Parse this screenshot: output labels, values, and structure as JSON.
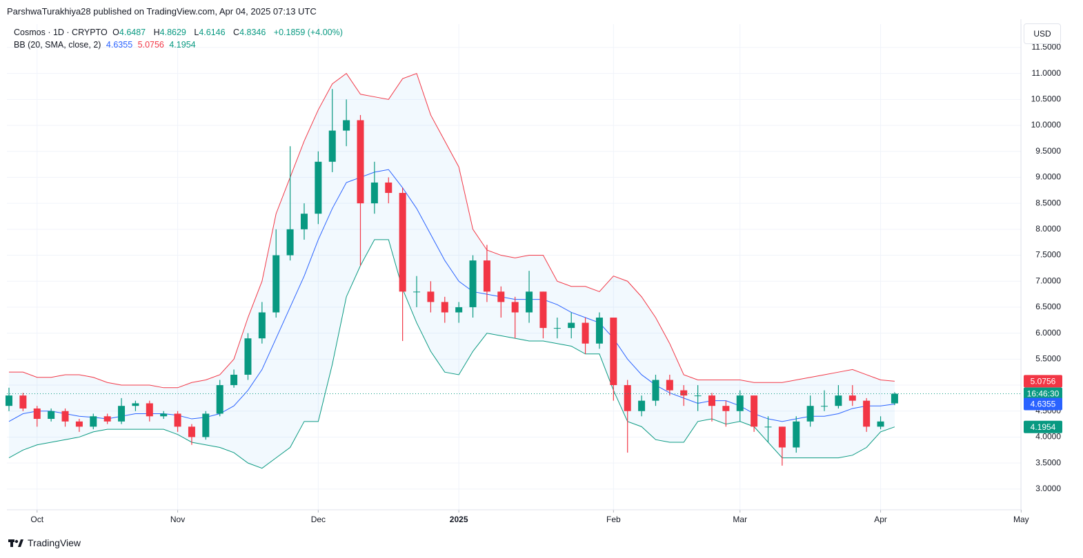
{
  "header": "ParshwaTurakhiya28 published on TradingView.com, Apr 04, 2025 07:13 UTC",
  "legend": {
    "symbol": "Cosmos · 1D · CRYPTO",
    "o": "O",
    "h": "H",
    "l": "L",
    "c": "C",
    "change": "+0.1859 (+4.00%)",
    "bb": "BB (20, SMA, close, 2)"
  },
  "currency": "USD",
  "brand": "TradingView",
  "countdown": "16:46:30",
  "chart_data": {
    "type": "candlestick",
    "up_color": "#089981",
    "down_color": "#f23645",
    "upper_color": "#f23645",
    "basis_color": "#2962ff",
    "lower_color": "#089981",
    "grid": true,
    "categories": [
      null,
      null,
      "Oct",
      null,
      null,
      null,
      null,
      null,
      null,
      null,
      null,
      null,
      "Nov",
      null,
      null,
      null,
      null,
      null,
      null,
      null,
      null,
      null,
      "Dec",
      null,
      null,
      null,
      null,
      null,
      null,
      null,
      null,
      null,
      "2025",
      null,
      null,
      null,
      null,
      null,
      null,
      null,
      null,
      null,
      null,
      "Feb",
      null,
      null,
      null,
      null,
      null,
      null,
      null,
      null,
      "Mar",
      null,
      null,
      null,
      null,
      null,
      null,
      null,
      null,
      null,
      "Apr",
      null,
      null,
      null,
      null,
      null,
      null,
      null,
      null,
      null,
      "May"
    ],
    "open": [
      4.6,
      4.8,
      4.55,
      4.35,
      4.5,
      4.3,
      4.2,
      4.4,
      4.3,
      4.6,
      4.65,
      4.4,
      4.45,
      4.2,
      4.0,
      4.45,
      5.0,
      5.2,
      5.9,
      6.4,
      7.5,
      8.0,
      8.3,
      9.3,
      9.9,
      10.1,
      8.5,
      8.9,
      8.7,
      6.8,
      6.8,
      6.6,
      6.4,
      6.5,
      7.4,
      6.8,
      6.6,
      6.4,
      6.8,
      6.1,
      6.1,
      6.2,
      5.8,
      6.3,
      5.0,
      4.5,
      4.7,
      5.1,
      4.9,
      4.8,
      4.8,
      4.6,
      4.5,
      4.8,
      4.2,
      4.2,
      3.8,
      4.3,
      4.6,
      4.6,
      4.8,
      4.7,
      4.2,
      4.6487,
      null,
      null,
      null,
      null,
      null,
      null,
      null,
      null,
      null
    ],
    "high": [
      4.95,
      4.85,
      4.6,
      4.55,
      4.55,
      4.35,
      4.45,
      4.45,
      4.75,
      4.7,
      4.7,
      4.5,
      4.5,
      4.25,
      4.5,
      5.1,
      5.3,
      6.0,
      6.6,
      8.0,
      9.6,
      8.5,
      9.5,
      10.7,
      10.5,
      10.2,
      9.3,
      9.0,
      8.8,
      7.1,
      7.0,
      6.7,
      6.6,
      7.5,
      7.7,
      6.9,
      6.7,
      7.2,
      6.8,
      6.3,
      6.4,
      6.3,
      6.4,
      6.3,
      5.1,
      4.8,
      5.2,
      5.2,
      5.0,
      5.0,
      4.85,
      4.7,
      4.9,
      4.8,
      4.4,
      4.2,
      4.4,
      4.8,
      4.9,
      5.0,
      5.0,
      4.75,
      4.4,
      4.8629,
      null,
      null,
      null,
      null,
      null,
      null,
      null,
      null,
      null
    ],
    "low": [
      4.5,
      4.5,
      4.2,
      4.3,
      4.2,
      4.1,
      4.15,
      4.25,
      4.25,
      4.5,
      4.3,
      4.35,
      4.1,
      3.85,
      3.95,
      4.4,
      4.95,
      5.1,
      5.8,
      6.3,
      7.4,
      7.8,
      8.1,
      9.1,
      9.6,
      7.3,
      8.3,
      8.5,
      5.85,
      6.5,
      6.4,
      6.2,
      6.2,
      6.3,
      6.6,
      6.3,
      5.9,
      6.2,
      5.9,
      5.9,
      5.9,
      5.6,
      5.7,
      4.7,
      3.7,
      4.4,
      4.6,
      4.8,
      4.6,
      4.5,
      4.3,
      4.2,
      4.3,
      4.1,
      3.9,
      3.45,
      3.7,
      4.2,
      4.5,
      4.55,
      4.6,
      4.1,
      4.15,
      4.6146,
      null,
      null,
      null,
      null,
      null,
      null,
      null,
      null,
      null
    ],
    "close": [
      4.8,
      4.55,
      4.35,
      4.5,
      4.3,
      4.2,
      4.4,
      4.3,
      4.6,
      4.65,
      4.4,
      4.45,
      4.2,
      4.0,
      4.45,
      5.0,
      5.2,
      5.9,
      6.4,
      7.5,
      8.0,
      8.3,
      9.3,
      9.9,
      10.1,
      8.5,
      8.9,
      8.7,
      6.8,
      6.8,
      6.6,
      6.4,
      6.5,
      7.4,
      6.8,
      6.6,
      6.4,
      6.8,
      6.1,
      6.1,
      6.2,
      5.8,
      6.3,
      5.0,
      4.5,
      4.7,
      5.1,
      4.9,
      4.8,
      4.8,
      4.6,
      4.5,
      4.8,
      4.2,
      4.2,
      3.8,
      4.3,
      4.6,
      4.6,
      4.8,
      4.7,
      4.2,
      4.3,
      4.8346,
      null,
      null,
      null,
      null,
      null,
      null,
      null,
      null,
      null
    ],
    "upper": [
      5.25,
      5.25,
      5.15,
      5.15,
      5.2,
      5.2,
      5.15,
      5.05,
      5.0,
      5.0,
      5.0,
      4.95,
      4.95,
      5.05,
      5.1,
      5.2,
      5.5,
      6.3,
      7.0,
      8.3,
      9.0,
      9.7,
      10.3,
      10.8,
      11.0,
      10.6,
      10.55,
      10.5,
      10.9,
      11.0,
      10.2,
      9.7,
      9.2,
      8.0,
      7.6,
      7.5,
      7.45,
      7.5,
      7.5,
      7.0,
      6.9,
      6.9,
      6.8,
      7.1,
      7.0,
      6.7,
      6.3,
      5.8,
      5.2,
      5.1,
      5.1,
      5.1,
      5.1,
      5.05,
      5.05,
      5.05,
      5.1,
      5.15,
      5.2,
      5.25,
      5.3,
      5.2,
      5.1,
      5.0756,
      null,
      null,
      null,
      null,
      null,
      null,
      null,
      null,
      null
    ],
    "basis": [
      4.3,
      4.45,
      4.5,
      4.5,
      4.45,
      4.4,
      4.38,
      4.35,
      4.4,
      4.45,
      4.45,
      4.45,
      4.42,
      4.35,
      4.38,
      4.45,
      4.6,
      4.9,
      5.3,
      5.9,
      6.5,
      7.1,
      7.8,
      8.4,
      8.9,
      9.0,
      9.1,
      9.15,
      8.8,
      8.4,
      7.9,
      7.4,
      7.0,
      6.8,
      6.75,
      6.7,
      6.65,
      6.65,
      6.65,
      6.55,
      6.4,
      6.3,
      6.2,
      5.9,
      5.5,
      5.2,
      5.0,
      4.85,
      4.75,
      4.65,
      4.7,
      4.7,
      4.6,
      4.45,
      4.35,
      4.3,
      4.35,
      4.4,
      4.4,
      4.45,
      4.55,
      4.6,
      4.6,
      4.6355,
      null,
      null,
      null,
      null,
      null,
      null,
      null,
      null,
      null
    ],
    "lower": [
      3.6,
      3.75,
      3.85,
      3.9,
      3.95,
      4.0,
      4.1,
      4.15,
      4.15,
      4.15,
      4.15,
      4.15,
      4.05,
      3.9,
      3.85,
      3.8,
      3.7,
      3.5,
      3.4,
      3.6,
      3.8,
      4.3,
      4.3,
      5.4,
      6.7,
      7.3,
      7.8,
      7.8,
      6.85,
      6.2,
      5.65,
      5.25,
      5.2,
      5.65,
      6.0,
      5.95,
      5.9,
      5.85,
      5.85,
      5.8,
      5.75,
      5.6,
      5.6,
      4.9,
      4.3,
      4.2,
      3.95,
      3.9,
      3.9,
      4.3,
      4.35,
      4.25,
      4.3,
      4.2,
      3.9,
      3.6,
      3.6,
      3.6,
      3.6,
      3.6,
      3.65,
      3.8,
      4.1,
      4.1954,
      null,
      null,
      null,
      null,
      null,
      null,
      null,
      null,
      null
    ],
    "ylim": [
      2.6,
      11.95
    ],
    "yticks": [
      {
        "value": 3,
        "label": "3.0000"
      },
      {
        "value": 3.5,
        "label": "3.5000"
      },
      {
        "value": 4,
        "label": "4.0000"
      },
      {
        "value": 4.5,
        "label": "4.5000"
      },
      {
        "value": 5,
        "label": "5.0000"
      },
      {
        "value": 5.5,
        "label": "5.5000"
      },
      {
        "value": 6,
        "label": "6.0000"
      },
      {
        "value": 6.5,
        "label": "6.5000"
      },
      {
        "value": 7,
        "label": "7.0000"
      },
      {
        "value": 7.5,
        "label": "7.5000"
      },
      {
        "value": 8,
        "label": "8.0000"
      },
      {
        "value": 8.5,
        "label": "8.5000"
      },
      {
        "value": 9,
        "label": "9.0000"
      },
      {
        "value": 9.5,
        "label": "9.5000"
      },
      {
        "value": 10,
        "label": "10.0000"
      },
      {
        "value": 10.5,
        "label": "10.5000"
      },
      {
        "value": 11,
        "label": "11.0000"
      },
      {
        "value": 11.5,
        "label": "11.5000"
      }
    ]
  }
}
